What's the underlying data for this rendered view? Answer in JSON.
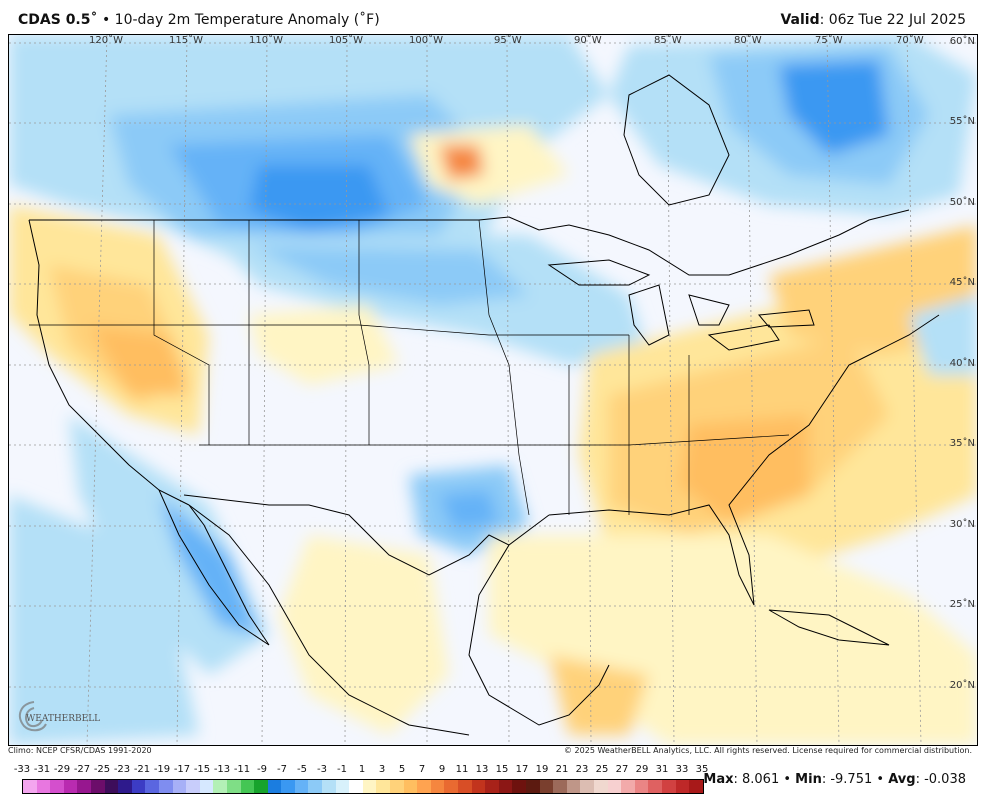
{
  "header": {
    "model": "CDAS 0.5",
    "deg": "˚",
    "bullet": " • ",
    "product": "10-day 2m Temperature Anomaly (˚F)",
    "valid_label": "Valid",
    "valid_value": ": 06z Tue 22 Jul 2025"
  },
  "map": {
    "lon_labels": [
      "120˚W",
      "115˚W",
      "110˚W",
      "105˚W",
      "100˚W",
      "95˚W",
      "90˚W",
      "85˚W",
      "80˚W",
      "75˚W",
      "70˚W"
    ],
    "lat_labels": [
      "60˚N",
      "55˚N",
      "50˚N",
      "45˚N",
      "40˚N",
      "35˚N",
      "30˚N",
      "25˚N",
      "20˚N"
    ]
  },
  "footer": {
    "climo": "Climo: NCEP CFSR/CDAS 1991-2020",
    "copyright": "© 2025 WeatherBELL Analytics, LLC. All rights reserved. License required for commercial distribution."
  },
  "logo_text": "WEATHERBELL",
  "colorbar": {
    "ticks": [
      "-33",
      "-31",
      "-29",
      "-27",
      "-25",
      "-23",
      "-21",
      "-19",
      "-17",
      "-15",
      "-13",
      "-11",
      "-9",
      "-7",
      "-5",
      "-3",
      "-1",
      "1",
      "3",
      "5",
      "7",
      "9",
      "11",
      "13",
      "15",
      "17",
      "19",
      "21",
      "23",
      "25",
      "27",
      "29",
      "31",
      "33",
      "35"
    ],
    "colors": [
      "#f4a6ef",
      "#e877e0",
      "#d44fcd",
      "#b92bb0",
      "#97178f",
      "#6c0d6a",
      "#3d0d5a",
      "#2e1a8c",
      "#3c3cc4",
      "#5a66e0",
      "#7f8df0",
      "#a7b0f7",
      "#c8cdfb",
      "#d6e8ff",
      "#b3f0b6",
      "#7fde86",
      "#44c654",
      "#17a32c",
      "#1b7de0",
      "#3a98f2",
      "#65b2f7",
      "#8ccaf7",
      "#b4e0f7",
      "#d8f1fb",
      "#ffffff",
      "#fff5c4",
      "#ffe69a",
      "#ffd27a",
      "#ffbe60",
      "#ffa350",
      "#f5863f",
      "#e96a31",
      "#d84e26",
      "#c2341d",
      "#a82219",
      "#8c1715",
      "#6e120e",
      "#5c1a10",
      "#7a3f2e",
      "#9c6a5a",
      "#bf9688",
      "#dcbdb2",
      "#f0d8cf",
      "#f7d0d0",
      "#f2aaaa",
      "#ea8585",
      "#df6161",
      "#d14141",
      "#be2828",
      "#a81919"
    ]
  },
  "stats": {
    "max_label": "Max",
    "max_value": ": 8.061",
    "sep1": " • ",
    "min_label": "Min",
    "min_value": ": -9.751",
    "sep2": " • ",
    "avg_label": "Avg",
    "avg_value": ": -0.038"
  }
}
